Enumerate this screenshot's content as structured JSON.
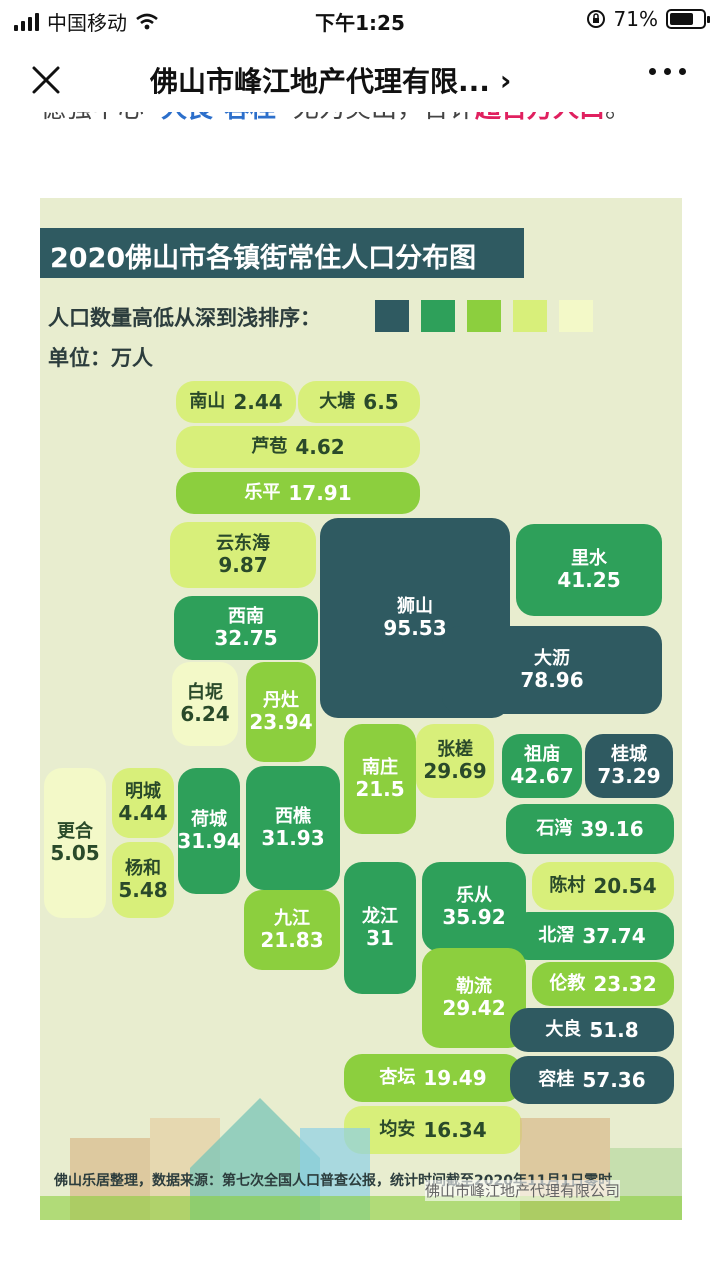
{
  "status": {
    "carrier": "中国移动",
    "time": "下午1:25",
    "battery": "71%",
    "battery_level": 0.71
  },
  "nav": {
    "title": "佛山市峰江地产代理有限...",
    "chevron": "›"
  },
  "article": {
    "text_before": "德强中心",
    "highlight_blue": "“大良-容桂”",
    "text_middle": "尤为突出，合计",
    "highlight_red": "超百万人口",
    "text_end": "。"
  },
  "infographic": {
    "title": "2020佛山市各镇街常住人口分布图",
    "legend_label": "人口数量高低从深到浅排序：",
    "legend_colors": [
      "#2f5a61",
      "#2ea05a",
      "#8ccf3e",
      "#d8ef7a",
      "#f3f9c8"
    ],
    "unit": "单位：万人",
    "footer": "佛山乐居整理，数据来源：第七次全国人口普查公报，统计时间截至2020年11月1日零时",
    "watermark": "佛山市峰江地产代理有限公司"
  },
  "tiles": [
    {
      "name": "南山",
      "value": "2.44"
    },
    {
      "name": "大塘",
      "value": "6.5"
    },
    {
      "name": "芦苞",
      "value": "4.62"
    },
    {
      "name": "乐平",
      "value": "17.91"
    },
    {
      "name": "云东海",
      "value": "9.87"
    },
    {
      "name": "西南",
      "value": "32.75"
    },
    {
      "name": "狮山",
      "value": "95.53"
    },
    {
      "name": "里水",
      "value": "41.25"
    },
    {
      "name": "大沥",
      "value": "78.96"
    },
    {
      "name": "白坭",
      "value": "6.24"
    },
    {
      "name": "丹灶",
      "value": "23.94"
    },
    {
      "name": "南庄",
      "value": "21.5"
    },
    {
      "name": "张槎",
      "value": "29.69"
    },
    {
      "name": "祖庙",
      "value": "42.67"
    },
    {
      "name": "桂城",
      "value": "73.29"
    },
    {
      "name": "更合",
      "value": "5.05"
    },
    {
      "name": "明城",
      "value": "4.44"
    },
    {
      "name": "杨和",
      "value": "5.48"
    },
    {
      "name": "荷城",
      "value": "31.94"
    },
    {
      "name": "西樵",
      "value": "31.93"
    },
    {
      "name": "石湾",
      "value": "39.16"
    },
    {
      "name": "九江",
      "value": "21.83"
    },
    {
      "name": "龙江",
      "value": "31"
    },
    {
      "name": "乐从",
      "value": "35.92"
    },
    {
      "name": "陈村",
      "value": "20.54"
    },
    {
      "name": "北滘",
      "value": "37.74"
    },
    {
      "name": "勒流",
      "value": "29.42"
    },
    {
      "name": "伦教",
      "value": "23.32"
    },
    {
      "name": "大良",
      "value": "51.8"
    },
    {
      "name": "杏坛",
      "value": "19.49"
    },
    {
      "name": "容桂",
      "value": "57.36"
    },
    {
      "name": "均安",
      "value": "16.34"
    }
  ]
}
